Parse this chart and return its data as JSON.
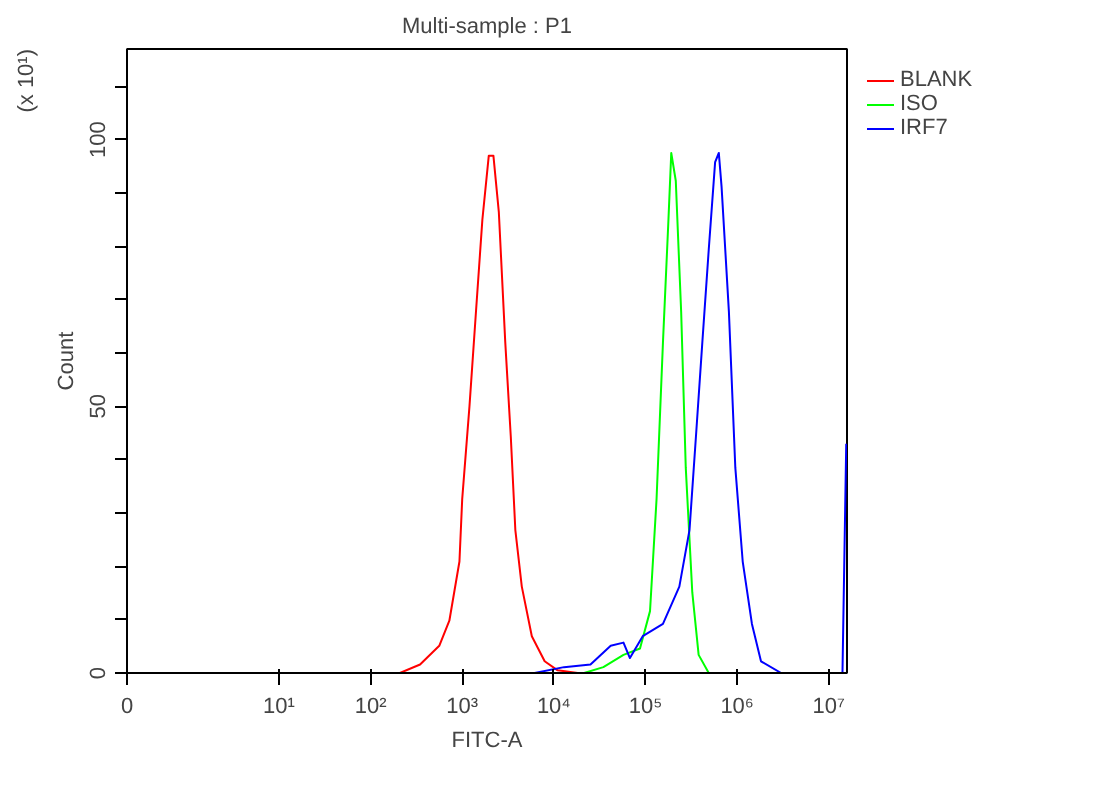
{
  "chart_data": {
    "type": "line",
    "title": "Multi-sample : P1",
    "xlabel": "FITC-A",
    "ylabel": "Count",
    "annotations": [
      "(x 10¹)"
    ],
    "log": "x",
    "xlim": [
      0.22,
      15800000
    ],
    "ylim": [
      0,
      117
    ],
    "xticks": [
      {
        "value": 0.22,
        "label": "0"
      },
      {
        "value": 10,
        "label": "10¹"
      },
      {
        "value": 100,
        "label": "10²"
      },
      {
        "value": 1000,
        "label": "10³"
      },
      {
        "value": 10000,
        "label": "10⁴"
      },
      {
        "value": 100000,
        "label": "10⁵"
      },
      {
        "value": 1000000,
        "label": "10⁶"
      },
      {
        "value": 10000000,
        "label": "10⁷"
      }
    ],
    "yticks": [
      0,
      {
        "value": 10,
        "label": null
      },
      {
        "value": 20,
        "label": null
      },
      {
        "value": 30,
        "label": null
      },
      {
        "value": 40,
        "label": null
      },
      50,
      {
        "value": 60,
        "label": null
      },
      {
        "value": 70,
        "label": null
      },
      {
        "value": 80,
        "label": null
      },
      {
        "value": 90,
        "label": null
      },
      100,
      {
        "value": 110,
        "label": null
      }
    ],
    "grid": false,
    "legend": "top right",
    "series": [
      {
        "name": "BLANK",
        "color": "#ff0000",
        "x": [
          79,
          209,
          347,
          562,
          724,
          933,
          1000,
          1200,
          1410,
          1660,
          1950,
          2190,
          2510,
          2950,
          3390,
          3800,
          4470,
          5750,
          7940,
          11000,
          18200
        ],
        "values": [
          0,
          0,
          1.6,
          5.1,
          9.8,
          20.9,
          32.6,
          50,
          67.5,
          85,
          97,
          97,
          86.4,
          62,
          44.3,
          26.8,
          16.2,
          6.9,
          2.2,
          0.5,
          0
        ]
      },
      {
        "name": "ISO",
        "color": "#00ff00",
        "x": [
          21400,
          34700,
          57500,
          87100,
          112000,
          132000,
          155000,
          178000,
          191000,
          214000,
          245000,
          275000,
          324000,
          380000,
          490000,
          813000
        ],
        "values": [
          0,
          1.1,
          3.4,
          4.6,
          11.6,
          32.6,
          61.9,
          85,
          97.5,
          92.3,
          67.7,
          38.5,
          15.1,
          3.4,
          0,
          0
        ]
      },
      {
        "name": "IRF7",
        "color": "#0000ff",
        "x": [
          6170,
          12900,
          25100,
          41700,
          57500,
          67600,
          93300,
          155000,
          234000,
          302000,
          355000,
          417000,
          490000,
          575000,
          631000,
          676000,
          813000,
          955000,
          1150000,
          1450000,
          1820000,
          3020000,
          14100000,
          15500000
        ],
        "values": [
          0,
          1.1,
          1.6,
          5.1,
          5.7,
          2.8,
          6.9,
          9.2,
          16.2,
          26.8,
          44.3,
          62,
          79.4,
          95.8,
          97.5,
          91.2,
          67.7,
          38.5,
          20.9,
          9.2,
          2.2,
          0,
          0,
          43
        ]
      }
    ]
  }
}
